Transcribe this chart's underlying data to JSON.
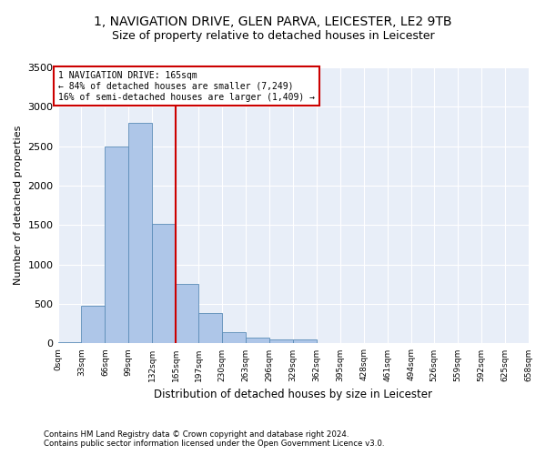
{
  "title_line1": "1, NAVIGATION DRIVE, GLEN PARVA, LEICESTER, LE2 9TB",
  "title_line2": "Size of property relative to detached houses in Leicester",
  "xlabel": "Distribution of detached houses by size in Leicester",
  "ylabel": "Number of detached properties",
  "bar_edges": [
    0,
    33,
    66,
    99,
    132,
    165,
    197,
    230,
    263,
    296,
    329,
    362,
    395,
    428,
    461,
    494,
    526,
    559,
    592,
    625,
    658
  ],
  "bar_values": [
    20,
    480,
    2500,
    2800,
    1520,
    750,
    390,
    140,
    70,
    55,
    55,
    0,
    0,
    0,
    0,
    0,
    0,
    0,
    0,
    0
  ],
  "bar_color": "#aec6e8",
  "bar_edgecolor": "#5b8db8",
  "vline_x": 165,
  "vline_color": "#cc0000",
  "ylim": [
    0,
    3500
  ],
  "yticks": [
    0,
    500,
    1000,
    1500,
    2000,
    2500,
    3000,
    3500
  ],
  "annotation_text": "1 NAVIGATION DRIVE: 165sqm\n← 84% of detached houses are smaller (7,249)\n16% of semi-detached houses are larger (1,409) →",
  "annotation_box_color": "#cc0000",
  "annotation_box_facecolor": "white",
  "footer_line1": "Contains HM Land Registry data © Crown copyright and database right 2024.",
  "footer_line2": "Contains public sector information licensed under the Open Government Licence v3.0.",
  "plot_bg_color": "#e8eef8",
  "title1_fontsize": 10,
  "title2_fontsize": 9,
  "tick_labels": [
    "0sqm",
    "33sqm",
    "66sqm",
    "99sqm",
    "132sqm",
    "165sqm",
    "197sqm",
    "230sqm",
    "263sqm",
    "296sqm",
    "329sqm",
    "362sqm",
    "395sqm",
    "428sqm",
    "461sqm",
    "494sqm",
    "526sqm",
    "559sqm",
    "592sqm",
    "625sqm",
    "658sqm"
  ]
}
